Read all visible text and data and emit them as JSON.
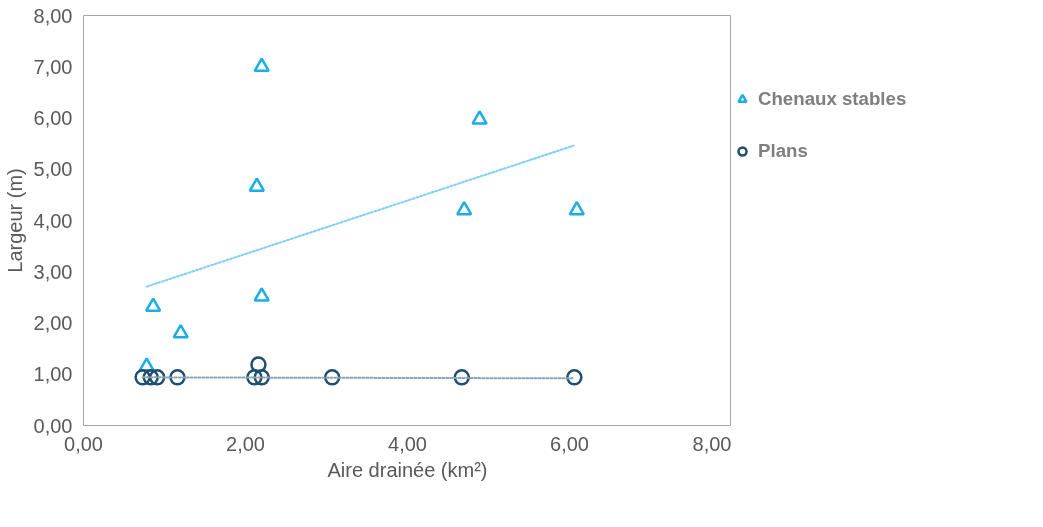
{
  "chart_data": {
    "type": "scatter",
    "xlabel": "Aire drainée (km²)",
    "ylabel": "Largeur (m)",
    "xlim": [
      0,
      8
    ],
    "ylim": [
      0,
      8
    ],
    "xticks": [
      {
        "value": 0,
        "label": "0,00"
      },
      {
        "value": 2,
        "label": "2,00"
      },
      {
        "value": 4,
        "label": "4,00"
      },
      {
        "value": 6,
        "label": "6,00"
      },
      {
        "value": 8,
        "label": "8,00"
      }
    ],
    "yticks": [
      {
        "value": 0,
        "label": "0,00"
      },
      {
        "value": 1,
        "label": "1,00"
      },
      {
        "value": 2,
        "label": "2,00"
      },
      {
        "value": 3,
        "label": "3,00"
      },
      {
        "value": 4,
        "label": "4,00"
      },
      {
        "value": 5,
        "label": "5,00"
      },
      {
        "value": 6,
        "label": "6,00"
      },
      {
        "value": 7,
        "label": "7,00"
      },
      {
        "value": 8,
        "label": "8,00"
      }
    ],
    "grid": false,
    "legend": "right",
    "series": [
      {
        "name": "Chenaux stables",
        "color": "#1aaee6",
        "marker": "triangle",
        "x": [
          2.2,
          2.14,
          2.2,
          0.86,
          1.2,
          0.78,
          4.89,
          4.7,
          6.09
        ],
        "values": [
          7.0,
          4.66,
          2.52,
          2.32,
          1.8,
          1.15,
          5.97,
          4.2,
          4.2
        ]
      },
      {
        "name": "Plans",
        "color": "#1f4e6e",
        "marker": "circle",
        "x": [
          0.73,
          0.83,
          0.91,
          1.16,
          2.11,
          2.2,
          2.16,
          3.07,
          4.67,
          6.06
        ],
        "values": [
          0.94,
          0.94,
          0.94,
          0.94,
          0.94,
          0.94,
          1.19,
          0.94,
          0.94,
          0.94
        ]
      },
      {
        "type": "line",
        "color": "#7fd0f2",
        "line_style": "dotted",
        "x": [
          0.78,
          6.05
        ],
        "values": [
          2.71,
          5.46
        ]
      },
      {
        "type": "line",
        "color": "#8aa3b5",
        "line_style": "dotted",
        "x": [
          0.73,
          6.06
        ],
        "values": [
          0.94,
          0.92
        ]
      }
    ]
  }
}
